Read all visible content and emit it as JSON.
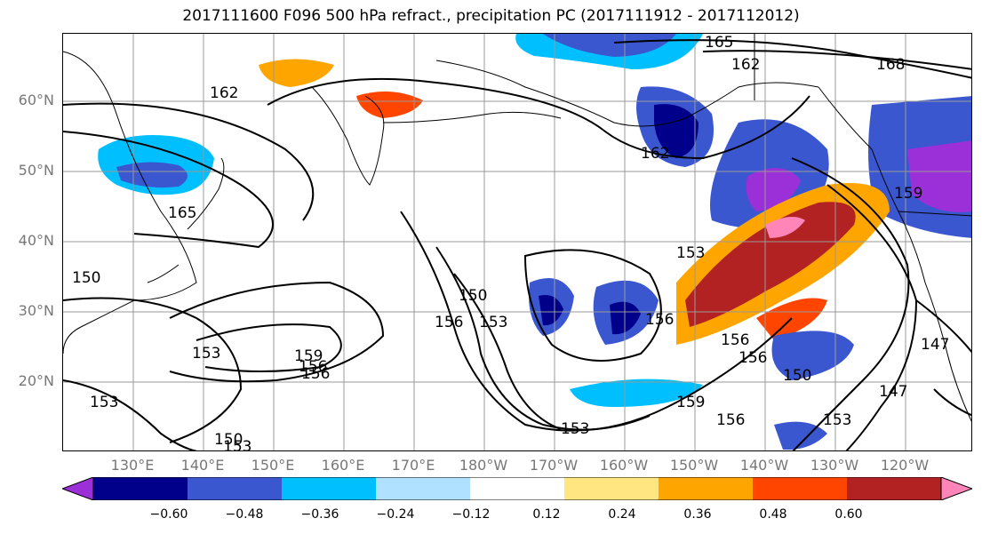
{
  "title": "2017111600 F096 500 hPa refract., precipitation PC (2017111912 - 2017112012)",
  "lat_labels": [
    "60°N",
    "50°N",
    "40°N",
    "30°N",
    "20°N"
  ],
  "lon_labels": [
    "130°E",
    "140°E",
    "150°E",
    "160°E",
    "170°E",
    "180°W",
    "170°W",
    "160°W",
    "150°W",
    "140°W",
    "130°W",
    "120°W"
  ],
  "colorbar": {
    "ticks": [
      "−0.60",
      "−0.48",
      "−0.36",
      "−0.24",
      "−0.12",
      "0.12",
      "0.24",
      "0.36",
      "0.48",
      "0.60"
    ],
    "colors": [
      "#9b30d9",
      "#00008b",
      "#3a57d0",
      "#00bfff",
      "#b0e2ff",
      "#ffffff",
      "#ffe680",
      "#ffa500",
      "#ff4500",
      "#b22222",
      "#ff85b8"
    ]
  },
  "contour_labels": [
    "165",
    "162",
    "168",
    "162",
    "165",
    "159",
    "153",
    "156",
    "150",
    "153",
    "156",
    "153",
    "156",
    "159",
    "156",
    "153",
    "150",
    "153",
    "159",
    "156",
    "150",
    "147",
    "147",
    "153",
    "162",
    "156",
    "150",
    "153",
    "156"
  ],
  "colors": {
    "contour": "#000000",
    "grid": "#999999",
    "axis_label": "#777777"
  }
}
